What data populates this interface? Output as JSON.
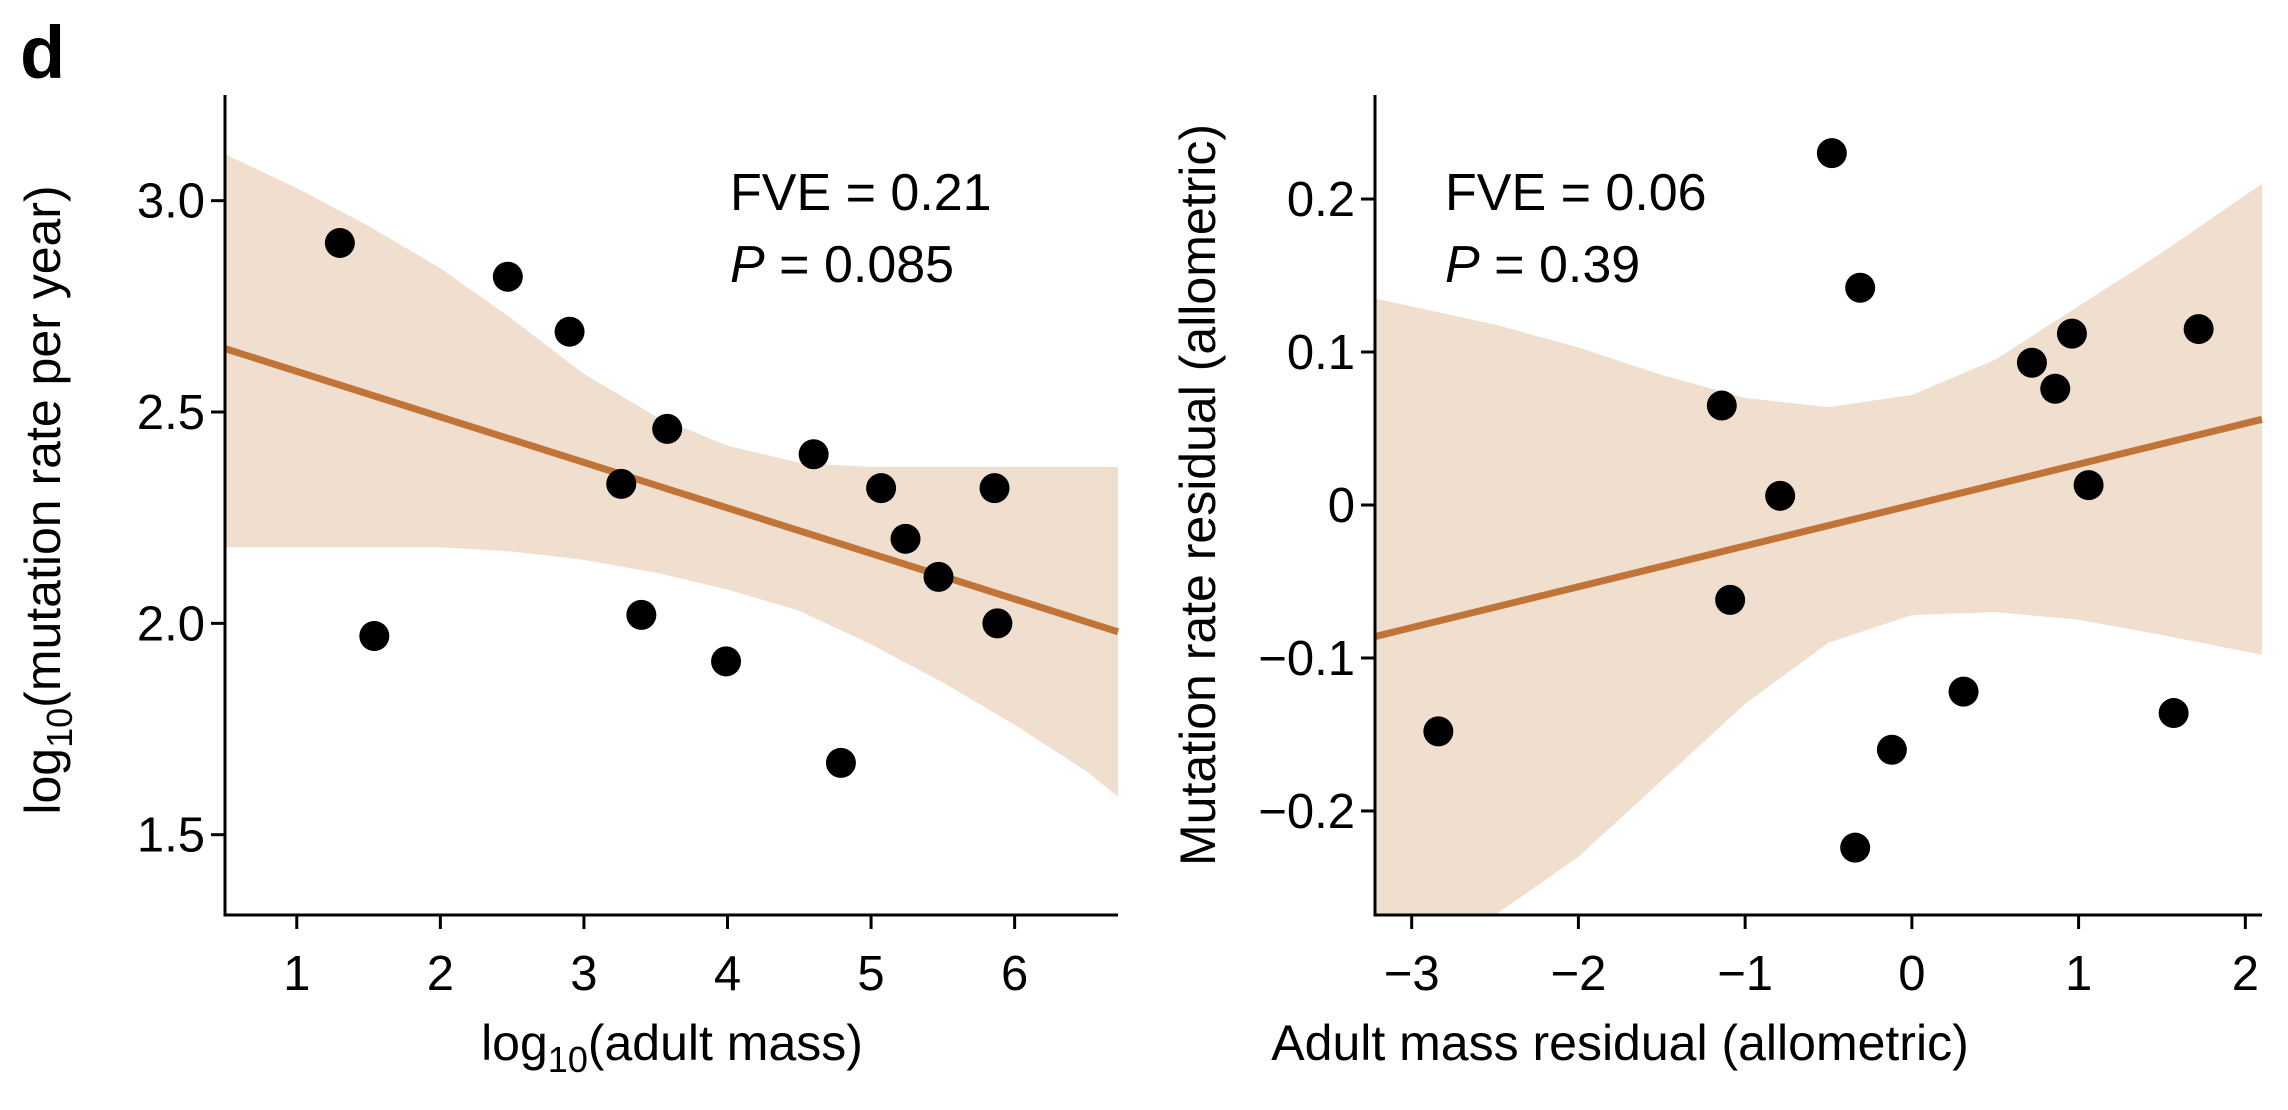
{
  "panel_label": "d",
  "chart_data": [
    {
      "type": "scatter",
      "xlabel_main": "log",
      "xlabel_sub": "10",
      "xlabel_rest": "(adult mass)",
      "ylabel_main": "log",
      "ylabel_sub": "10",
      "ylabel_rest": "(mutation rate per year)",
      "xlim": [
        0.5,
        6.72
      ],
      "ylim": [
        1.31,
        3.25
      ],
      "xticks": [
        1,
        2,
        3,
        4,
        5,
        6
      ],
      "yticks": [
        1.5,
        2.0,
        2.5,
        3.0
      ],
      "ytick_labels": [
        "1.5",
        "2.0",
        "2.5",
        "3.0"
      ],
      "annotation_fve": "FVE = 0.21",
      "annotation_p_letter": "P",
      "annotation_p_rest": " = 0.085",
      "points": [
        {
          "x": 1.3,
          "y": 2.9
        },
        {
          "x": 1.54,
          "y": 1.97
        },
        {
          "x": 2.47,
          "y": 2.82
        },
        {
          "x": 2.9,
          "y": 2.69
        },
        {
          "x": 3.26,
          "y": 2.33
        },
        {
          "x": 3.4,
          "y": 2.02
        },
        {
          "x": 3.58,
          "y": 2.46
        },
        {
          "x": 3.99,
          "y": 1.91
        },
        {
          "x": 4.6,
          "y": 2.4
        },
        {
          "x": 4.79,
          "y": 1.67
        },
        {
          "x": 5.07,
          "y": 2.32
        },
        {
          "x": 5.24,
          "y": 2.2
        },
        {
          "x": 5.47,
          "y": 2.11
        },
        {
          "x": 5.86,
          "y": 2.32
        },
        {
          "x": 5.88,
          "y": 2.0
        }
      ],
      "fit": {
        "x": [
          0.5,
          6.72
        ],
        "y": [
          2.65,
          1.98
        ]
      },
      "band": {
        "x": [
          0.5,
          1.0,
          1.5,
          2.0,
          2.5,
          3.0,
          3.5,
          4.0,
          4.5,
          5.0,
          5.5,
          6.0,
          6.5,
          6.72
        ],
        "upper": [
          3.11,
          3.03,
          2.94,
          2.84,
          2.72,
          2.59,
          2.49,
          2.42,
          2.38,
          2.37,
          2.37,
          2.37,
          2.37,
          2.37
        ],
        "lower": [
          2.18,
          2.18,
          2.18,
          2.18,
          2.17,
          2.15,
          2.12,
          2.08,
          2.03,
          1.95,
          1.86,
          1.76,
          1.65,
          1.59
        ]
      },
      "colors": {
        "line": "#c07437",
        "band": "#f0dfcf",
        "points": "#000000"
      }
    },
    {
      "type": "scatter",
      "xlabel": "Adult mass residual (allometric)",
      "ylabel": "Mutation rate residual (allometric)",
      "xlim": [
        -3.22,
        2.1
      ],
      "ylim": [
        -0.268,
        0.268
      ],
      "xticks": [
        -3,
        -2,
        -1,
        0,
        1,
        2
      ],
      "xtick_labels": [
        "−3",
        "−2",
        "−1",
        "0",
        "1",
        "2"
      ],
      "yticks": [
        -0.2,
        -0.1,
        0,
        0.1,
        0.2
      ],
      "ytick_labels": [
        "−0.2",
        "−0.1",
        "0",
        "0.1",
        "0.2"
      ],
      "annotation_fve": "FVE = 0.06",
      "annotation_p_letter": "P",
      "annotation_p_rest": " = 0.39",
      "points": [
        {
          "x": -2.84,
          "y": -0.148
        },
        {
          "x": -1.14,
          "y": 0.065
        },
        {
          "x": -1.09,
          "y": -0.062
        },
        {
          "x": -0.79,
          "y": 0.006
        },
        {
          "x": -0.48,
          "y": 0.23
        },
        {
          "x": -0.34,
          "y": -0.224
        },
        {
          "x": -0.31,
          "y": 0.142
        },
        {
          "x": -0.12,
          "y": -0.16
        },
        {
          "x": 0.31,
          "y": -0.122
        },
        {
          "x": 0.72,
          "y": 0.093
        },
        {
          "x": 0.86,
          "y": 0.076
        },
        {
          "x": 0.96,
          "y": 0.112
        },
        {
          "x": 1.06,
          "y": 0.013
        },
        {
          "x": 1.57,
          "y": -0.136
        },
        {
          "x": 1.72,
          "y": 0.115
        }
      ],
      "fit": {
        "x": [
          -3.22,
          2.1
        ],
        "y": [
          -0.086,
          0.056
        ]
      },
      "band": {
        "x": [
          -3.22,
          -2.5,
          -2.0,
          -1.5,
          -1.0,
          -0.5,
          0.0,
          0.5,
          1.0,
          1.5,
          2.1
        ],
        "upper": [
          0.135,
          0.118,
          0.103,
          0.085,
          0.07,
          0.064,
          0.072,
          0.095,
          0.13,
          0.165,
          0.21
        ],
        "lower": [
          -0.268,
          -0.268,
          -0.23,
          -0.18,
          -0.13,
          -0.09,
          -0.072,
          -0.07,
          -0.075,
          -0.085,
          -0.098
        ]
      },
      "colors": {
        "line": "#c07437",
        "band": "#f0dfcf",
        "points": "#000000"
      }
    }
  ]
}
